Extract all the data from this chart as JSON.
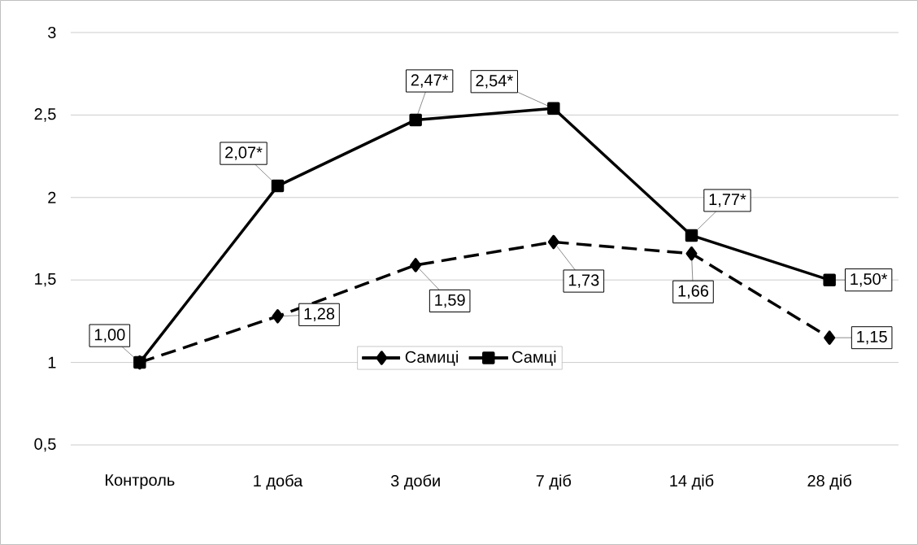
{
  "chart_data": {
    "type": "line",
    "categories": [
      "Контроль",
      "1 доба",
      "3 доби",
      "7 діб",
      "14 діб",
      "28 діб"
    ],
    "series": [
      {
        "name": "Самиці",
        "color": "#000000",
        "marker": "diamond",
        "line_style": "dashed",
        "values": [
          1.0,
          1.28,
          1.59,
          1.73,
          1.66,
          1.15
        ],
        "value_labels": [
          null,
          "1,28",
          "1,59",
          "1,73",
          "1,66",
          "1,15"
        ]
      },
      {
        "name": "Самці",
        "color": "#000000",
        "marker": "square",
        "line_style": "solid",
        "values": [
          1.0,
          2.07,
          2.47,
          2.54,
          1.77,
          1.5
        ],
        "value_labels": [
          "1,00",
          "2,07*",
          "2,47*",
          "2,54*",
          "1,77*",
          "1,50*"
        ]
      }
    ],
    "ylim": [
      0.5,
      3
    ],
    "yticks": [
      {
        "value": 0.5,
        "label": "0,5"
      },
      1,
      {
        "value": 1.5,
        "label": "1,5"
      },
      2,
      {
        "value": 2.5,
        "label": "2,5"
      },
      3
    ],
    "grid": "y",
    "legend": "bottom"
  }
}
